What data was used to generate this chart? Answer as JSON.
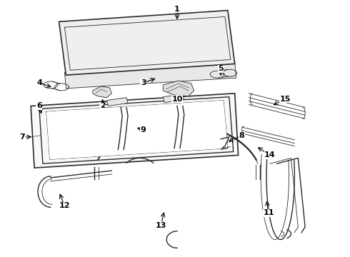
{
  "bg_color": "#ffffff",
  "line_color": "#2a2a2a",
  "label_color": "#000000",
  "lw": 1.0,
  "lw_thin": 0.6,
  "label_fontsize": 8,
  "label_fontweight": "bold",
  "figsize": [
    4.9,
    3.6
  ],
  "dpi": 100
}
